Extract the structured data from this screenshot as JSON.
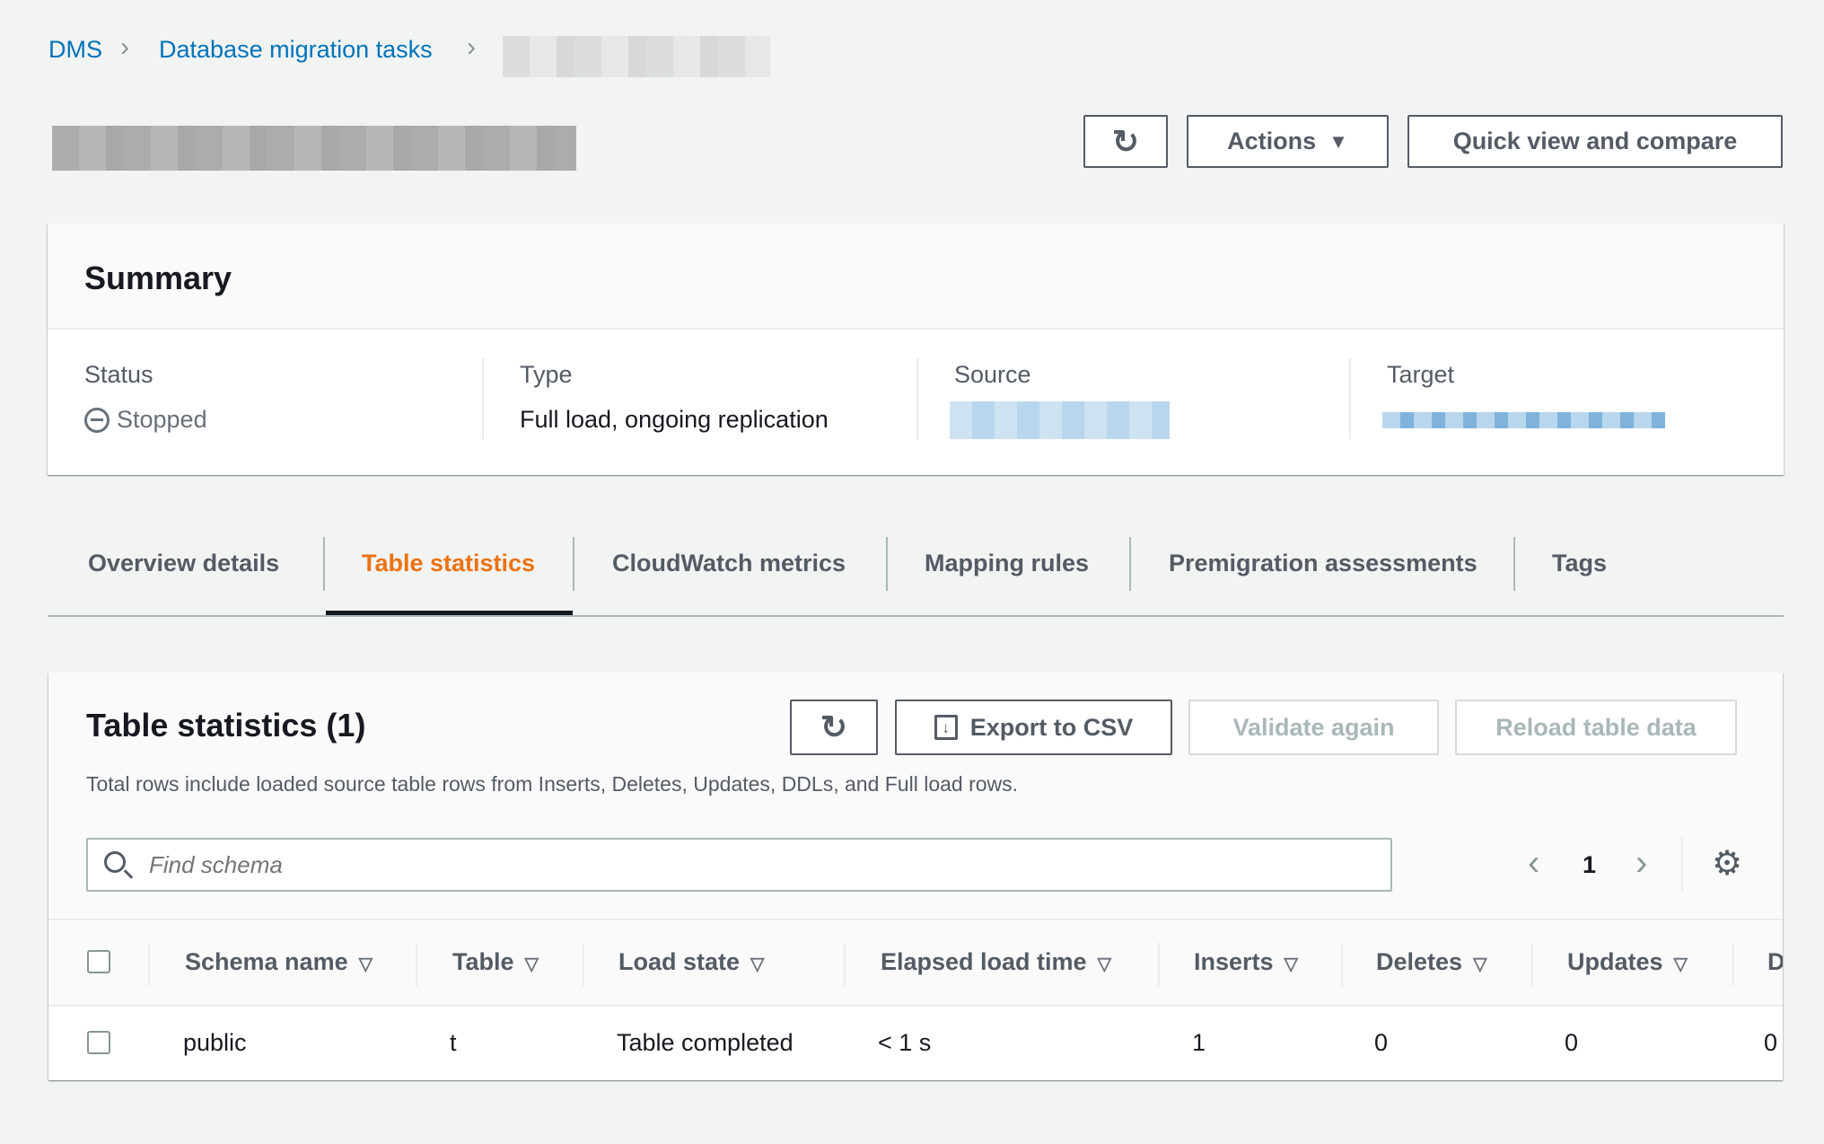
{
  "breadcrumb": [
    "DMS",
    "Database migration tasks"
  ],
  "header": {
    "actions_label": "Actions",
    "quick_view_label": "Quick view and compare"
  },
  "summary": {
    "title": "Summary",
    "status_label": "Status",
    "status_value": "Stopped",
    "type_label": "Type",
    "type_value": "Full load, ongoing replication",
    "source_label": "Source",
    "target_label": "Target"
  },
  "tabs": [
    "Overview details",
    "Table statistics",
    "CloudWatch metrics",
    "Mapping rules",
    "Premigration assessments",
    "Tags"
  ],
  "active_tab": "Table statistics",
  "accent": "#ec7211",
  "table_stats": {
    "title": "Table statistics (1)",
    "export_label": "Export to CSV",
    "validate_label": "Validate again",
    "reload_label": "Reload table data",
    "description": "Total rows include loaded source table rows from Inserts, Deletes, Updates, DDLs, and Full load rows.",
    "search_placeholder": "Find schema",
    "page": "1",
    "columns": [
      "Schema name",
      "Table",
      "Load state",
      "Elapsed load time",
      "Inserts",
      "Deletes",
      "Updates",
      "D"
    ],
    "rows": [
      [
        "public",
        "t",
        "Table completed",
        "< 1 s",
        "1",
        "0",
        "0",
        "0"
      ]
    ]
  }
}
